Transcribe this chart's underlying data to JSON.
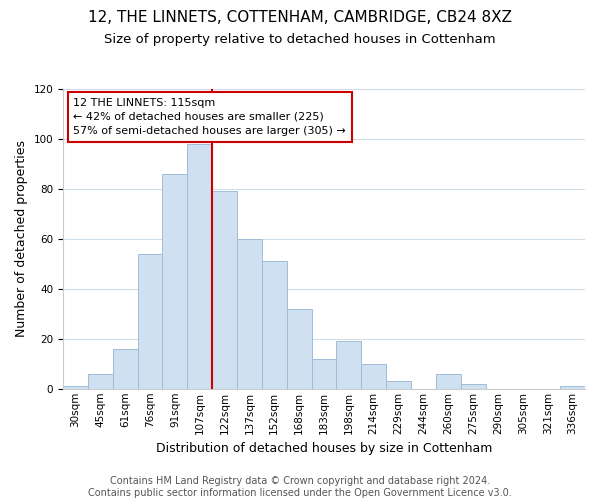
{
  "title": "12, THE LINNETS, COTTENHAM, CAMBRIDGE, CB24 8XZ",
  "subtitle": "Size of property relative to detached houses in Cottenham",
  "xlabel": "Distribution of detached houses by size in Cottenham",
  "ylabel": "Number of detached properties",
  "bar_labels": [
    "30sqm",
    "45sqm",
    "61sqm",
    "76sqm",
    "91sqm",
    "107sqm",
    "122sqm",
    "137sqm",
    "152sqm",
    "168sqm",
    "183sqm",
    "198sqm",
    "214sqm",
    "229sqm",
    "244sqm",
    "260sqm",
    "275sqm",
    "290sqm",
    "305sqm",
    "321sqm",
    "336sqm"
  ],
  "bar_heights": [
    1,
    6,
    16,
    54,
    86,
    98,
    79,
    60,
    51,
    32,
    12,
    19,
    10,
    3,
    0,
    6,
    2,
    0,
    0,
    0,
    1
  ],
  "bar_color": "#cfe0f0",
  "bar_edge_color": "#a0bcd8",
  "vline_x": 5.5,
  "vline_color": "#cc0000",
  "annotation_line1": "12 THE LINNETS: 115sqm",
  "annotation_line2": "← 42% of detached houses are smaller (225)",
  "annotation_line3": "57% of semi-detached houses are larger (305) →",
  "annotation_box_color": "#ffffff",
  "annotation_box_edge": "#cc0000",
  "footer_text": "Contains HM Land Registry data © Crown copyright and database right 2024.\nContains public sector information licensed under the Open Government Licence v3.0.",
  "ylim": [
    0,
    120
  ],
  "yticks": [
    0,
    20,
    40,
    60,
    80,
    100,
    120
  ],
  "background_color": "#ffffff",
  "grid_color": "#d0dde8",
  "title_fontsize": 11,
  "subtitle_fontsize": 9.5,
  "axis_label_fontsize": 9,
  "tick_fontsize": 7.5,
  "annotation_fontsize": 8,
  "footer_fontsize": 7
}
